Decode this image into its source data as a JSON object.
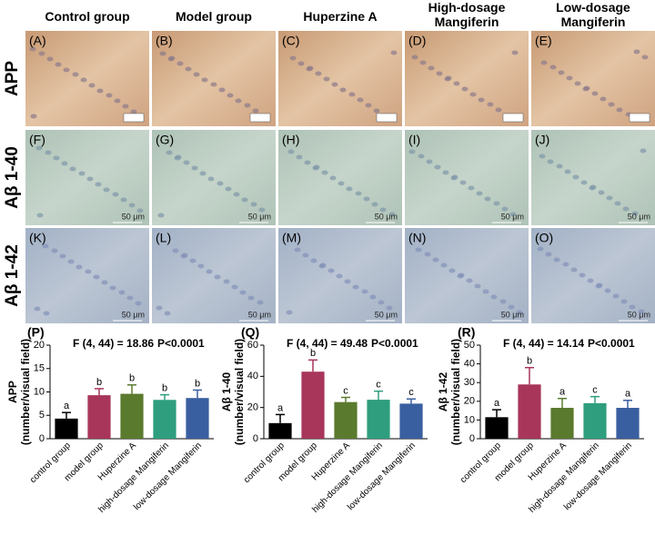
{
  "columns": [
    "Control group",
    "Model group",
    "Huperzine A",
    "High-dosage Mangiferin",
    "Low-dosage Mangiferin"
  ],
  "rows": [
    {
      "label": "APP",
      "panels": [
        "(A)",
        "(B)",
        "(C)",
        "(D)",
        "(E)"
      ]
    },
    {
      "label": "Aβ 1-40",
      "panels": [
        "(F)",
        "(G)",
        "(H)",
        "(I)",
        "(J)"
      ]
    },
    {
      "label": "Aβ 1-42",
      "panels": [
        "(K)",
        "(L)",
        "(M)",
        "(N)",
        "(O)"
      ]
    }
  ],
  "scale_bar": "50 μm",
  "chart_data": [
    {
      "type": "bar",
      "panel": "(P)",
      "annotation": [
        "F (4, 44) = 18.86",
        "P<0.0001"
      ],
      "ylabel": [
        "APP",
        "(number/visual field)"
      ],
      "categories": [
        "control group",
        "model group",
        "Huperzine A",
        "high-dosage Mangiferin",
        "low-dosage Mangiferin"
      ],
      "values": [
        4.3,
        9.3,
        9.6,
        8.3,
        8.7
      ],
      "errors": [
        1.3,
        1.4,
        1.9,
        1.1,
        1.7
      ],
      "letters": [
        "a",
        "b",
        "b",
        "b",
        "b"
      ],
      "colors": [
        "#000000",
        "#a8365a",
        "#5a7a2e",
        "#2e9e7e",
        "#3a5fa0"
      ],
      "ylim": [
        0,
        20
      ],
      "yticks": [
        0,
        5,
        10,
        15,
        20
      ]
    },
    {
      "type": "bar",
      "panel": "(Q)",
      "annotation": [
        "F (4, 44) = 49.48",
        "P<0.0001"
      ],
      "ylabel": [
        "Aβ 1-40",
        "(number/visual field)"
      ],
      "categories": [
        "control group",
        "model group",
        "Huperzine A",
        "high-dosage Mangiferin",
        "low-dosage Mangiferin"
      ],
      "values": [
        10,
        43,
        23.5,
        25,
        22.5
      ],
      "errors": [
        5.5,
        7.5,
        3,
        5.5,
        3
      ],
      "letters": [
        "a",
        "b",
        "c",
        "c",
        "c"
      ],
      "colors": [
        "#000000",
        "#a8365a",
        "#5a7a2e",
        "#2e9e7e",
        "#3a5fa0"
      ],
      "ylim": [
        0,
        60
      ],
      "yticks": [
        0,
        20,
        40,
        60
      ]
    },
    {
      "type": "bar",
      "panel": "(R)",
      "annotation": [
        "F (4, 44) = 14.14",
        "P<0.0001"
      ],
      "ylabel": [
        "Aβ 1-42",
        "(number/visual field)"
      ],
      "categories": [
        "control group",
        "model group",
        "Huperzine A",
        "high-dosage Mangiferin",
        "low-dosage Mangiferin"
      ],
      "values": [
        11.5,
        29,
        16.5,
        19,
        16.5
      ],
      "errors": [
        4,
        9,
        5,
        3.5,
        4
      ],
      "letters": [
        "a",
        "b",
        "a",
        "c",
        "a"
      ],
      "colors": [
        "#000000",
        "#a8365a",
        "#5a7a2e",
        "#2e9e7e",
        "#3a5fa0"
      ],
      "ylim": [
        0,
        50
      ],
      "yticks": [
        0,
        10,
        20,
        30,
        40,
        50
      ]
    }
  ]
}
